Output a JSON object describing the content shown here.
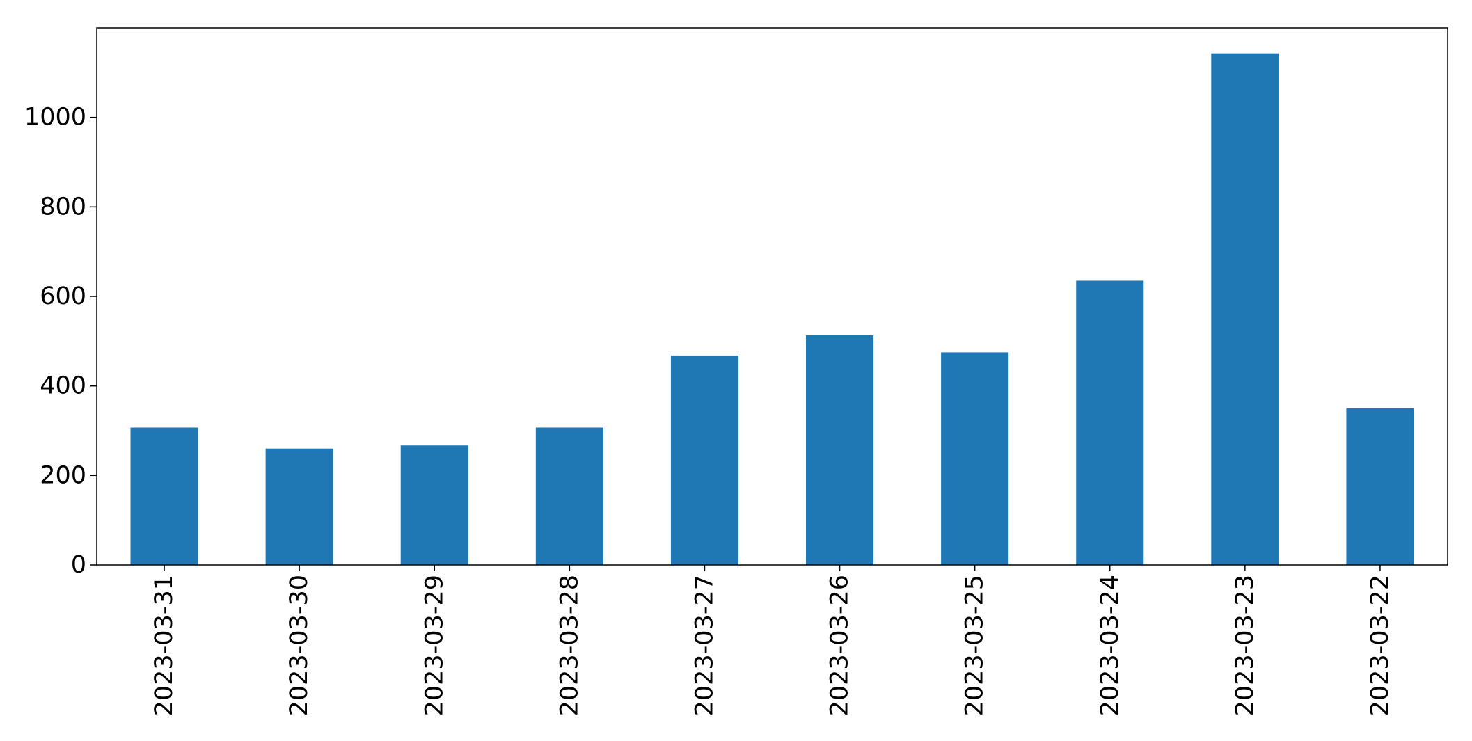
{
  "chart_data": {
    "type": "bar",
    "title": "",
    "xlabel": "",
    "ylabel": "",
    "categories": [
      "2023-03-31",
      "2023-03-30",
      "2023-03-29",
      "2023-03-28",
      "2023-03-27",
      "2023-03-26",
      "2023-03-25",
      "2023-03-24",
      "2023-03-23",
      "2023-03-22"
    ],
    "values": [
      307,
      260,
      267,
      307,
      468,
      513,
      475,
      635,
      1143,
      350
    ],
    "ylim": [
      0,
      1200
    ],
    "yticks": [
      "0",
      "200",
      "400",
      "600",
      "800",
      "1000"
    ],
    "bar_color": "#1f77b4",
    "grid": false,
    "legend": false
  }
}
